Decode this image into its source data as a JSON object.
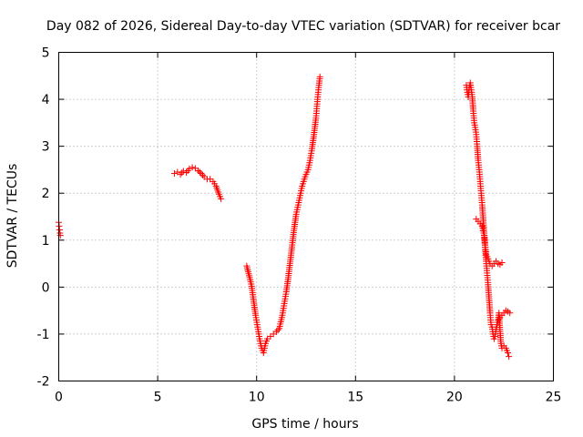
{
  "chart_data": {
    "type": "scatter",
    "title": "Day 082 of 2026, Sidereal Day-to-day VTEC variation (SDTVAR) for receiver bcar",
    "xlabel": "GPS time / hours",
    "ylabel": "SDTVAR / TECUs",
    "xlim": [
      0,
      25
    ],
    "ylim": [
      -2,
      5
    ],
    "xticks": [
      0,
      5,
      10,
      15,
      20,
      25
    ],
    "yticks": [
      -2,
      -1,
      0,
      1,
      2,
      3,
      4,
      5
    ],
    "grid": true,
    "marker": "+",
    "series": [
      {
        "name": "SDTVAR",
        "color": "#ff0000",
        "segments": [
          [
            [
              0.0,
              1.38
            ],
            [
              0.02,
              1.3
            ],
            [
              0.04,
              1.22
            ],
            [
              0.06,
              1.15
            ],
            [
              0.08,
              1.1
            ]
          ],
          [
            [
              5.85,
              2.42
            ],
            [
              6.0,
              2.45
            ],
            [
              6.15,
              2.4
            ],
            [
              6.3,
              2.47
            ],
            [
              6.45,
              2.44
            ],
            [
              6.6,
              2.52
            ],
            [
              6.75,
              2.55
            ],
            [
              6.9,
              2.53
            ],
            [
              7.05,
              2.48
            ],
            [
              7.2,
              2.42
            ],
            [
              7.35,
              2.35
            ],
            [
              7.5,
              2.3
            ],
            [
              7.65,
              2.3
            ],
            [
              7.8,
              2.25
            ],
            [
              7.95,
              2.15
            ],
            [
              8.1,
              1.98
            ],
            [
              8.2,
              1.88
            ]
          ],
          [
            [
              9.5,
              0.45
            ],
            [
              9.65,
              0.2
            ],
            [
              9.75,
              0.02
            ],
            [
              9.85,
              -0.3
            ],
            [
              9.95,
              -0.6
            ],
            [
              10.05,
              -0.85
            ],
            [
              10.15,
              -1.1
            ],
            [
              10.25,
              -1.3
            ],
            [
              10.35,
              -1.4
            ],
            [
              10.45,
              -1.2
            ],
            [
              10.55,
              -1.1
            ],
            [
              10.7,
              -1.05
            ],
            [
              10.85,
              -1.0
            ],
            [
              11.0,
              -0.95
            ],
            [
              11.15,
              -0.88
            ],
            [
              11.3,
              -0.6
            ],
            [
              11.4,
              -0.35
            ],
            [
              11.5,
              -0.1
            ],
            [
              11.6,
              0.2
            ],
            [
              11.7,
              0.55
            ],
            [
              11.8,
              0.9
            ],
            [
              11.9,
              1.25
            ],
            [
              12.0,
              1.55
            ],
            [
              12.1,
              1.75
            ],
            [
              12.2,
              1.95
            ],
            [
              12.3,
              2.15
            ],
            [
              12.45,
              2.35
            ],
            [
              12.6,
              2.5
            ],
            [
              12.7,
              2.7
            ],
            [
              12.8,
              2.95
            ],
            [
              12.9,
              3.25
            ],
            [
              13.0,
              3.6
            ],
            [
              13.05,
              3.85
            ],
            [
              13.1,
              4.1
            ],
            [
              13.15,
              4.3
            ],
            [
              13.2,
              4.48
            ]
          ],
          [
            [
              20.6,
              4.3
            ],
            [
              20.65,
              4.15
            ],
            [
              20.7,
              4.05
            ],
            [
              20.75,
              4.25
            ],
            [
              20.8,
              4.35
            ],
            [
              20.85,
              4.2
            ],
            [
              20.9,
              4.05
            ],
            [
              20.95,
              3.75
            ],
            [
              21.0,
              3.5
            ],
            [
              21.05,
              3.4
            ],
            [
              21.1,
              3.25
            ],
            [
              21.15,
              3.0
            ],
            [
              21.2,
              2.7
            ],
            [
              21.25,
              2.5
            ],
            [
              21.3,
              2.25
            ],
            [
              21.35,
              2.0
            ],
            [
              21.4,
              1.75
            ],
            [
              21.45,
              1.45
            ],
            [
              21.5,
              1.15
            ],
            [
              21.55,
              0.85
            ],
            [
              21.6,
              0.55
            ],
            [
              21.65,
              0.3
            ],
            [
              21.7,
              0.05
            ],
            [
              21.75,
              -0.25
            ],
            [
              21.8,
              -0.55
            ],
            [
              21.85,
              -0.8
            ],
            [
              21.9,
              -0.85
            ],
            [
              21.95,
              -1.0
            ],
            [
              22.0,
              -1.1
            ],
            [
              22.05,
              -1.05
            ],
            [
              22.1,
              -0.9
            ],
            [
              22.15,
              -0.8
            ],
            [
              22.2,
              -0.7
            ],
            [
              22.25,
              -0.55
            ],
            [
              22.3,
              -0.9
            ],
            [
              22.35,
              -1.2
            ],
            [
              22.4,
              -1.3
            ],
            [
              22.5,
              -1.25
            ],
            [
              22.6,
              -1.3
            ],
            [
              22.7,
              -1.4
            ],
            [
              22.75,
              -1.48
            ]
          ],
          [
            [
              21.1,
              1.45
            ],
            [
              21.2,
              1.4
            ],
            [
              21.3,
              1.35
            ],
            [
              21.4,
              1.3
            ],
            [
              21.5,
              1.1
            ],
            [
              21.55,
              0.9
            ],
            [
              21.6,
              0.7
            ],
            [
              21.7,
              0.6
            ],
            [
              21.8,
              0.5
            ],
            [
              21.9,
              0.45
            ],
            [
              22.0,
              0.5
            ],
            [
              22.1,
              0.55
            ],
            [
              22.2,
              0.5
            ],
            [
              22.3,
              0.48
            ],
            [
              22.4,
              0.52
            ]
          ],
          [
            [
              22.3,
              -0.65
            ],
            [
              22.4,
              -0.6
            ],
            [
              22.5,
              -0.55
            ],
            [
              22.6,
              -0.5
            ],
            [
              22.7,
              -0.52
            ],
            [
              22.8,
              -0.55
            ]
          ]
        ]
      }
    ]
  }
}
